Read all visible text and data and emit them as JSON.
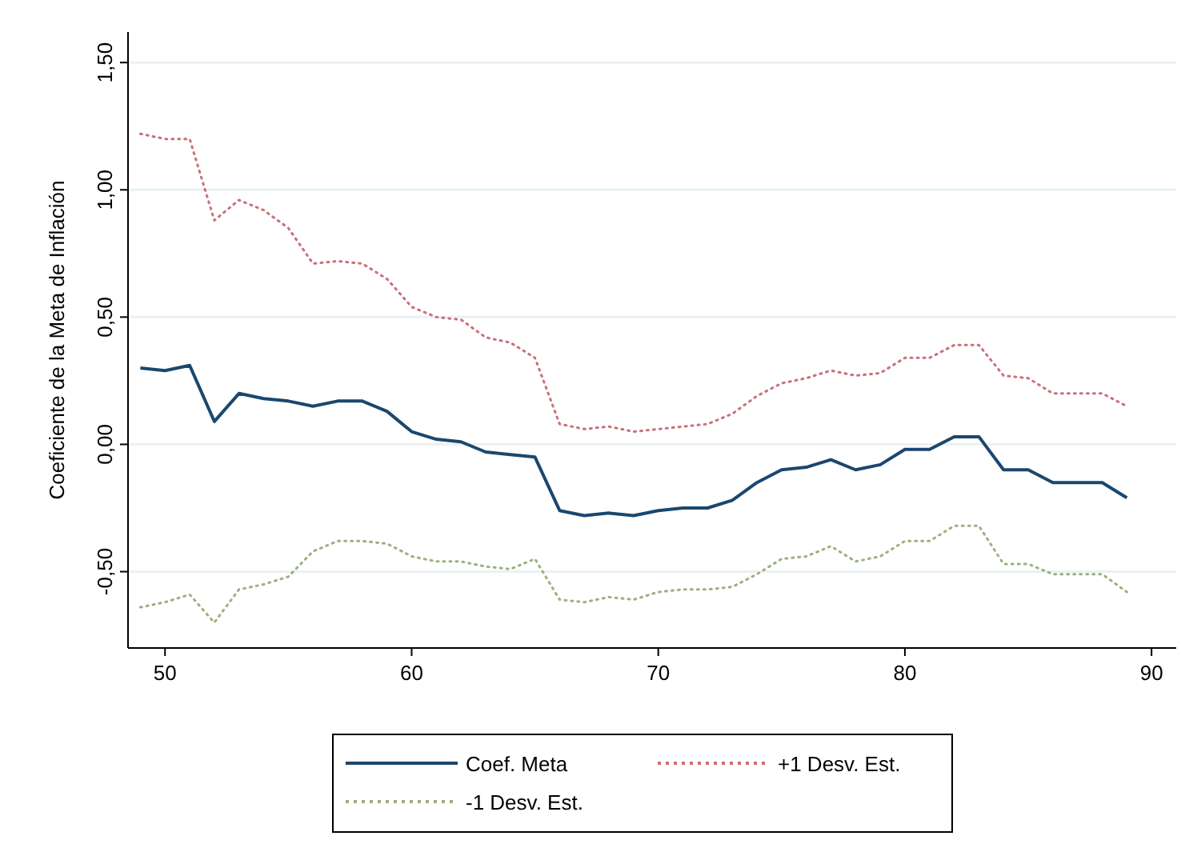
{
  "chart_data": {
    "type": "line",
    "ylabel": "Coeficiente de la Meta de Inflación",
    "x": [
      49,
      50,
      51,
      52,
      53,
      54,
      55,
      56,
      57,
      58,
      59,
      60,
      61,
      62,
      63,
      64,
      65,
      66,
      67,
      68,
      69,
      70,
      71,
      72,
      73,
      74,
      75,
      76,
      77,
      78,
      79,
      80,
      81,
      82,
      83,
      84,
      85,
      86,
      87,
      88,
      89
    ],
    "xlim": [
      48.5,
      91
    ],
    "xticks": [
      50,
      60,
      70,
      80,
      90
    ],
    "ylim": [
      -0.8,
      1.62
    ],
    "yticks": [
      {
        "value": 1.5,
        "label": "1,50"
      },
      {
        "value": 1,
        "label": "1,00"
      },
      {
        "value": 0.5,
        "label": "0,50"
      },
      {
        "value": 0,
        "label": "0,00"
      },
      {
        "value": -0.5,
        "label": "-0,50"
      }
    ],
    "grid": "y",
    "legend": "bottom",
    "marker": "none",
    "series": [
      {
        "name": "Coef. Meta",
        "color": "#1a476f",
        "line_style": "solid",
        "values": [
          0.3,
          0.29,
          0.31,
          0.09,
          0.2,
          0.18,
          0.17,
          0.15,
          0.17,
          0.17,
          0.13,
          0.05,
          0.02,
          0.01,
          -0.03,
          -0.04,
          -0.05,
          -0.26,
          -0.28,
          -0.27,
          -0.28,
          -0.26,
          -0.25,
          -0.25,
          -0.22,
          -0.15,
          -0.1,
          -0.09,
          -0.06,
          -0.1,
          -0.08,
          -0.02,
          -0.02,
          0.03,
          0.03,
          -0.1,
          -0.1,
          -0.15,
          -0.15,
          -0.15,
          -0.21
        ]
      },
      {
        "name": "+1 Desv. Est.",
        "color": "#c8707a",
        "line_style": "dotted",
        "values": [
          1.22,
          1.2,
          1.2,
          0.88,
          0.96,
          0.92,
          0.85,
          0.71,
          0.72,
          0.71,
          0.65,
          0.54,
          0.5,
          0.49,
          0.42,
          0.4,
          0.34,
          0.08,
          0.06,
          0.07,
          0.05,
          0.06,
          0.07,
          0.08,
          0.12,
          0.19,
          0.24,
          0.26,
          0.29,
          0.27,
          0.28,
          0.34,
          0.34,
          0.39,
          0.39,
          0.27,
          0.26,
          0.2,
          0.2,
          0.2,
          0.15
        ]
      },
      {
        "name": "-1 Desv. Est.",
        "color": "#a0ae80",
        "line_style": "dotted",
        "values": [
          -0.64,
          -0.62,
          -0.59,
          -0.7,
          -0.57,
          -0.55,
          -0.52,
          -0.42,
          -0.38,
          -0.38,
          -0.39,
          -0.44,
          -0.46,
          -0.46,
          -0.48,
          -0.49,
          -0.45,
          -0.61,
          -0.62,
          -0.6,
          -0.61,
          -0.58,
          -0.57,
          -0.57,
          -0.56,
          -0.51,
          -0.45,
          -0.44,
          -0.4,
          -0.46,
          -0.44,
          -0.38,
          -0.38,
          -0.32,
          -0.32,
          -0.47,
          -0.47,
          -0.51,
          -0.51,
          -0.51,
          -0.58
        ]
      }
    ]
  }
}
